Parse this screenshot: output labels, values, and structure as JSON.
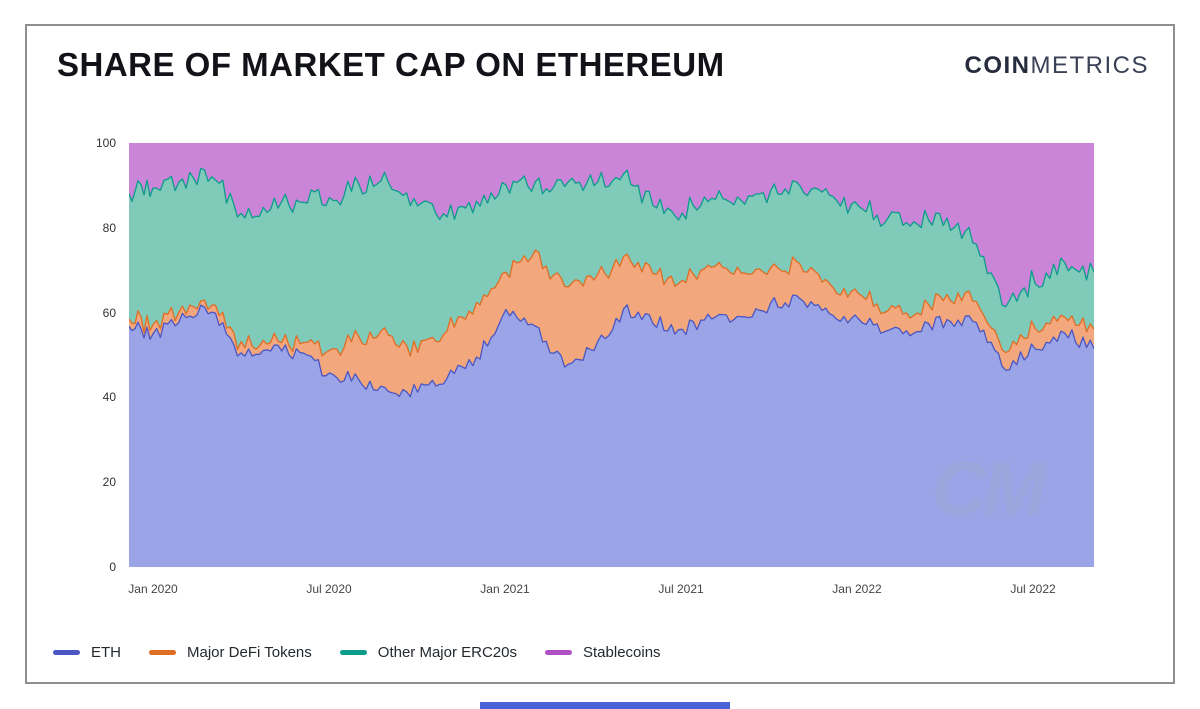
{
  "card": {
    "title": "SHARE OF MARKET CAP ON ETHEREUM",
    "logo_bold": "COIN",
    "logo_light": "METRICS",
    "watermark": "CM"
  },
  "chart_data": {
    "type": "area",
    "stacked": true,
    "unit": "percent of total market cap",
    "title": "Share of Market Cap on Ethereum",
    "grid": false,
    "legend_position": "bottom-left",
    "ylim": [
      0,
      100
    ],
    "y_ticks": [
      0,
      20,
      40,
      60,
      80,
      100
    ],
    "x_tick_labels": [
      "Jan 2020",
      "Jul 2020",
      "Jan 2021",
      "Jul 2021",
      "Jan 2022",
      "Jul 2022"
    ],
    "x": [
      "Dec 2019",
      "Jan 2020",
      "Feb 2020",
      "Mar 2020",
      "Apr 2020",
      "May 2020",
      "Jun 2020",
      "Jul 2020",
      "Aug 2020",
      "Sep 2020",
      "Oct 2020",
      "Nov 2020",
      "Dec 2020",
      "Jan 2021",
      "Feb 2021",
      "Mar 2021",
      "Apr 2021",
      "May 2021",
      "Jun 2021",
      "Jul 2021",
      "Aug 2021",
      "Sep 2021",
      "Oct 2021",
      "Nov 2021",
      "Dec 2021",
      "Jan 2022",
      "Feb 2022",
      "Mar 2022",
      "Apr 2022",
      "May 2022",
      "Jun 2022",
      "Jul 2022",
      "Aug 2022",
      "Sep 2022"
    ],
    "series": [
      {
        "name": "ETH",
        "color": "#4a56c4",
        "fill": "#9aa4e6",
        "values": [
          57.0,
          54.5,
          59.5,
          60.5,
          50.0,
          51.0,
          50.5,
          45.3,
          44.0,
          41.0,
          41.5,
          44.8,
          49.1,
          60.8,
          56.6,
          47.5,
          51.0,
          60.5,
          57.8,
          56.0,
          58.5,
          59.0,
          62.0,
          62.9,
          59.5,
          58.5,
          55.4,
          55.8,
          58.3,
          57.8,
          46.8,
          51.5,
          55.4,
          51.5
        ]
      },
      {
        "name": "Major DeFi Tokens",
        "color": "#e06d24",
        "fill": "#f2a87c",
        "values": [
          2.0,
          2.0,
          1.8,
          1.8,
          2.5,
          1.8,
          2.2,
          5.4,
          10.0,
          13.5,
          9.2,
          11.3,
          12.7,
          8.8,
          17.7,
          19.0,
          16.5,
          12.5,
          11.8,
          11.5,
          12.0,
          10.5,
          8.5,
          7.9,
          7.0,
          6.0,
          4.7,
          4.3,
          5.9,
          4.7,
          3.9,
          4.6,
          4.0,
          4.6
        ]
      },
      {
        "name": "Other Major ERC20s",
        "color": "#0d9c8c",
        "fill": "#7fcab8",
        "values": [
          29.5,
          32.5,
          30.2,
          30.2,
          30.5,
          31.5,
          33.3,
          36.1,
          36.0,
          36.0,
          34.3,
          27.2,
          23.9,
          20.4,
          16.0,
          23.8,
          22.5,
          19.5,
          16.1,
          16.0,
          16.0,
          17.0,
          18.0,
          18.5,
          20.8,
          20.5,
          22.0,
          20.8,
          17.9,
          13.7,
          11.1,
          10.7,
          12.5,
          13.5
        ]
      },
      {
        "name": "Stablecoins",
        "color": "#b14fc4",
        "fill": "#ca85d9",
        "values": [
          11.5,
          11.0,
          8.5,
          7.5,
          17.0,
          15.7,
          14.0,
          13.2,
          10.0,
          9.5,
          15.0,
          16.7,
          14.3,
          10.0,
          9.7,
          9.7,
          10.0,
          7.5,
          14.3,
          16.5,
          13.5,
          13.5,
          11.5,
          10.7,
          12.7,
          15.0,
          17.9,
          19.1,
          17.9,
          23.8,
          38.2,
          33.2,
          28.1,
          30.4
        ]
      }
    ]
  }
}
